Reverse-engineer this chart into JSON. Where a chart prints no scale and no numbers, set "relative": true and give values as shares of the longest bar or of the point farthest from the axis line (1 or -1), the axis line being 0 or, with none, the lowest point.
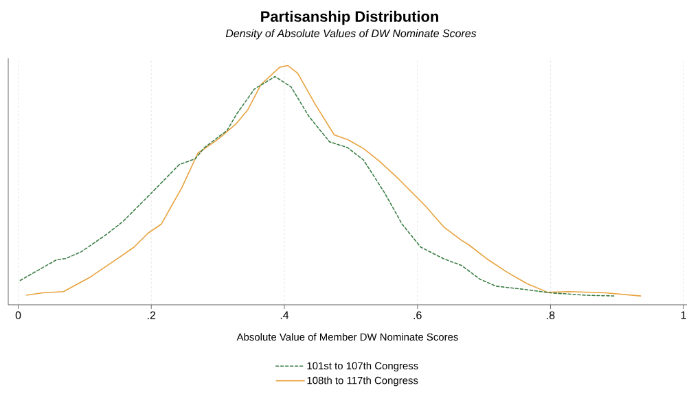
{
  "chart_data": {
    "type": "line",
    "title": "Partisanship Distribution",
    "subtitle": "Density of Absolute Values of DW Nominate Scores",
    "xlabel": "Absolute Value of Member DW Nominate Scores",
    "relative": true,
    "xlim": [
      -0.015,
      1.005
    ],
    "xticks": [
      0,
      {
        "value": 0.2,
        "label": ".2"
      },
      {
        "value": 0.4,
        "label": ".4"
      },
      {
        "value": 0.6,
        "label": ".6"
      },
      {
        "value": 0.8,
        "label": ".8"
      },
      1
    ],
    "grid": "x",
    "legend": "bottom",
    "marker": "none",
    "series": [
      {
        "name": "101st to 107th Congress",
        "color": "#3a7d44",
        "line_style": "dashed",
        "x": [
          0.003,
          0.058,
          0.071,
          0.095,
          0.13,
          0.157,
          0.198,
          0.242,
          0.266,
          0.28,
          0.314,
          0.328,
          0.355,
          0.386,
          0.41,
          0.437,
          0.468,
          0.495,
          0.519,
          0.55,
          0.577,
          0.605,
          0.639,
          0.666,
          0.694,
          0.718,
          0.762,
          0.8,
          0.854,
          0.895
        ],
        "values": [
          0.102,
          0.189,
          0.193,
          0.222,
          0.289,
          0.347,
          0.461,
          0.586,
          0.61,
          0.657,
          0.729,
          0.796,
          0.902,
          0.954,
          0.911,
          0.787,
          0.681,
          0.657,
          0.605,
          0.471,
          0.337,
          0.241,
          0.193,
          0.165,
          0.107,
          0.078,
          0.064,
          0.05,
          0.04,
          0.037
        ]
      },
      {
        "name": "108th to 117th Congress",
        "color": "#e8a13c",
        "line_style": "solid",
        "x": [
          0.012,
          0.037,
          0.068,
          0.109,
          0.147,
          0.174,
          0.195,
          0.215,
          0.246,
          0.27,
          0.3,
          0.328,
          0.345,
          0.365,
          0.393,
          0.405,
          0.42,
          0.447,
          0.475,
          0.495,
          0.519,
          0.543,
          0.571,
          0.612,
          0.639,
          0.666,
          0.677,
          0.704,
          0.735,
          0.765,
          0.796,
          0.827,
          0.882,
          0.936
        ],
        "values": [
          0.04,
          0.05,
          0.055,
          0.117,
          0.189,
          0.241,
          0.299,
          0.337,
          0.49,
          0.634,
          0.691,
          0.758,
          0.815,
          0.921,
          0.993,
          1.0,
          0.968,
          0.835,
          0.71,
          0.691,
          0.653,
          0.6,
          0.528,
          0.413,
          0.327,
          0.27,
          0.251,
          0.193,
          0.136,
          0.088,
          0.052,
          0.055,
          0.05,
          0.037
        ]
      }
    ]
  }
}
